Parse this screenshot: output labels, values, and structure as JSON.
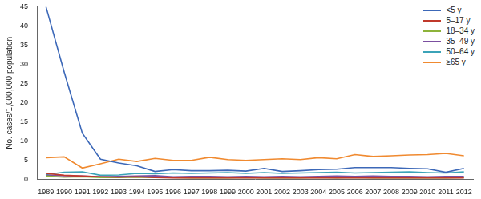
{
  "chart_data": {
    "type": "line",
    "y_label": "No. cases/1,000,000 population",
    "x": [
      1989,
      1990,
      1991,
      1992,
      1993,
      1994,
      1995,
      1996,
      1997,
      1998,
      1999,
      2000,
      2001,
      2002,
      2003,
      2004,
      2005,
      2006,
      2007,
      2008,
      2009,
      2010,
      2011,
      2012
    ],
    "series": [
      {
        "name": "<5 y",
        "color": "#3c68b8",
        "values": [
          45,
          28,
          12,
          5.2,
          4.2,
          3.5,
          2,
          2.5,
          2.2,
          2.2,
          2.3,
          2.1,
          2.8,
          2,
          2.2,
          2.5,
          2.6,
          3,
          3,
          3,
          2.8,
          2.7,
          1.8,
          2.8
        ]
      },
      {
        "name": "5–17 y",
        "color": "#c0392b",
        "values": [
          1.5,
          1.0,
          0.8,
          0.6,
          0.5,
          0.6,
          0.4,
          0.3,
          0.3,
          0.3,
          0.3,
          0.3,
          0.3,
          0.3,
          0.3,
          0.3,
          0.3,
          0.3,
          0.3,
          0.3,
          0.3,
          0.3,
          0.3,
          0.3
        ]
      },
      {
        "name": "18–34 y",
        "color": "#8db33a",
        "values": [
          0.8,
          0.5,
          0.6,
          0.4,
          0.4,
          0.5,
          0.4,
          0.4,
          0.3,
          0.3,
          0.3,
          0.4,
          0.3,
          0.3,
          0.3,
          0.4,
          0.3,
          0.4,
          0.3,
          0.3,
          0.3,
          0.3,
          0.3,
          0.4
        ]
      },
      {
        "name": "35–49 y",
        "color": "#7b4fa0",
        "values": [
          1.0,
          0.9,
          0.8,
          0.6,
          0.7,
          0.8,
          0.9,
          0.6,
          0.7,
          0.7,
          0.6,
          0.7,
          0.6,
          0.7,
          0.6,
          0.7,
          0.8,
          0.7,
          0.8,
          0.7,
          0.7,
          0.6,
          0.7,
          0.7
        ]
      },
      {
        "name": "50–64 y",
        "color": "#3ba3b8",
        "values": [
          1.2,
          1.8,
          1.9,
          1.0,
          1.1,
          1.5,
          1.4,
          1.6,
          1.5,
          1.6,
          1.7,
          1.5,
          1.7,
          1.5,
          1.6,
          1.7,
          1.8,
          1.6,
          1.7,
          1.8,
          1.9,
          1.7,
          1.6,
          1.9
        ]
      },
      {
        "name": "≥65 y",
        "color": "#f08a30",
        "values": [
          5.6,
          5.8,
          2.9,
          4.0,
          5.2,
          4.6,
          5.4,
          4.9,
          4.9,
          5.7,
          5.1,
          4.9,
          5.1,
          5.3,
          5.1,
          5.6,
          5.3,
          6.4,
          5.9,
          6.1,
          6.3,
          6.4,
          6.7,
          6.1
        ]
      }
    ],
    "ylim": [
      0,
      45
    ],
    "yticks": [
      0,
      5,
      10,
      15,
      20,
      25,
      30,
      35,
      40,
      45
    ],
    "grid": false,
    "legend": "upper right"
  }
}
